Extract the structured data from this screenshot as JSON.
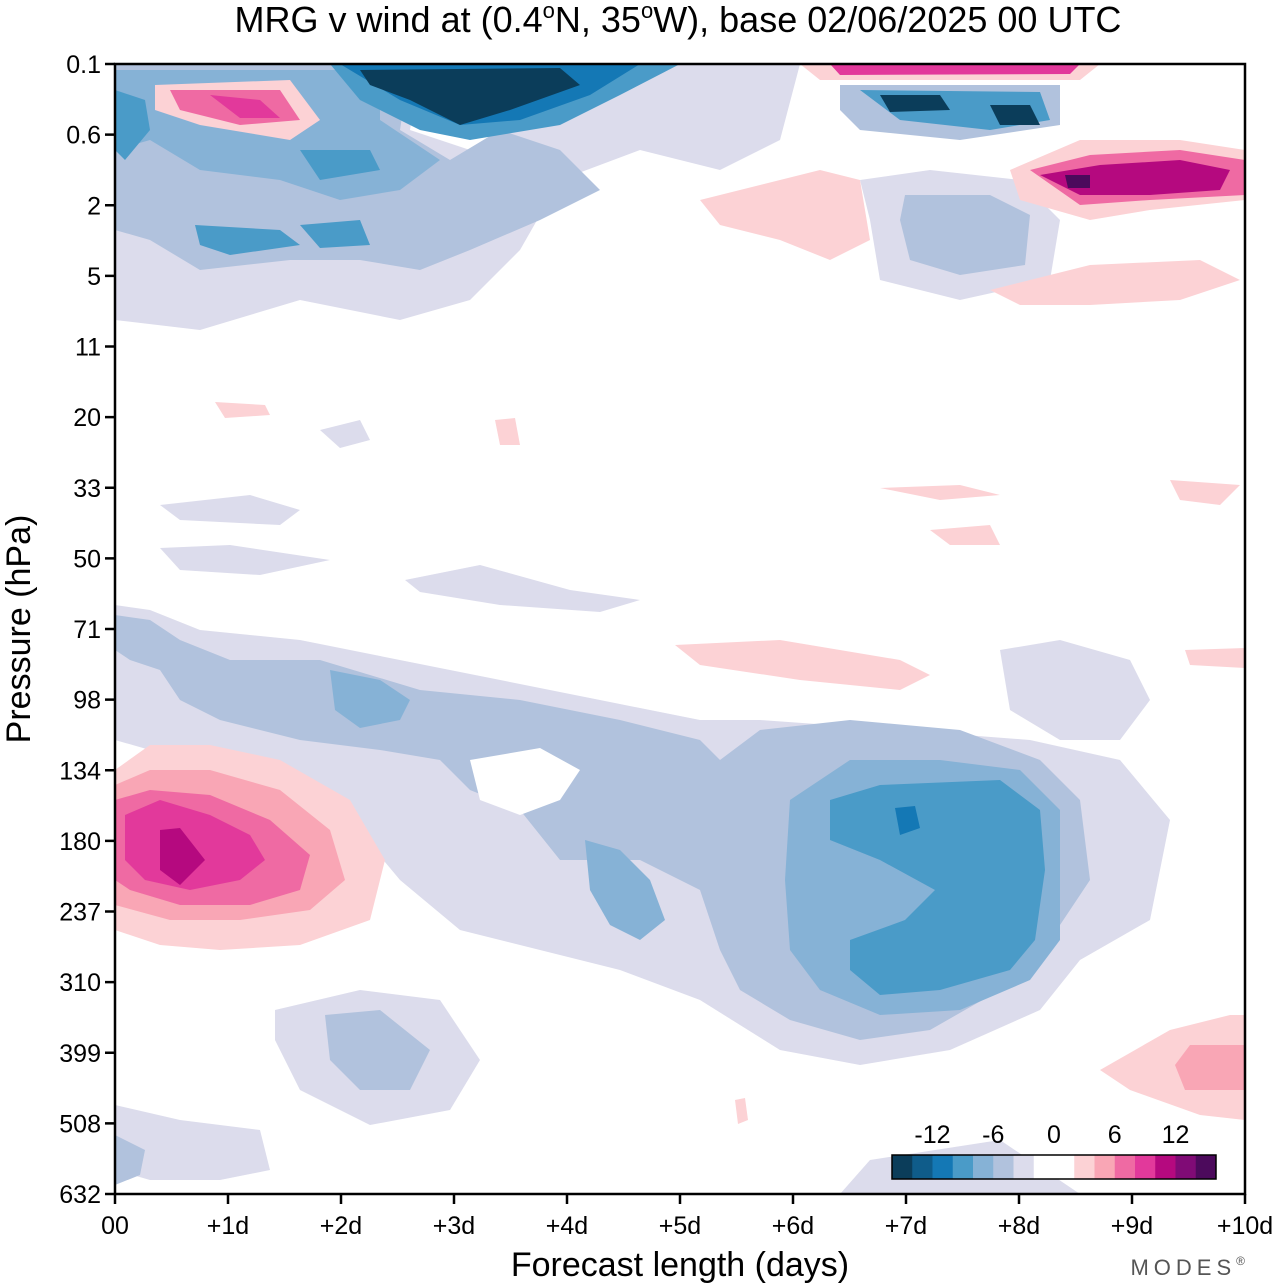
{
  "chart_data": {
    "type": "contour",
    "title": "MRG v wind at (0.4°N, 35°W),  base 02/06/2025  00 UTC",
    "title_parts": {
      "pre": "MRG v wind at (0.4",
      "deg1": "o",
      "mid": "N, 35",
      "deg2": "o",
      "post": "W),  base 02/06/2025  00 UTC"
    },
    "xlabel": "Forecast length (days)",
    "ylabel": "Pressure (hPa)",
    "x_ticks": [
      "00",
      "+1d",
      "+2d",
      "+3d",
      "+4d",
      "+5d",
      "+6d",
      "+7d",
      "+8d",
      "+9d",
      "+10d"
    ],
    "y_ticks": [
      "0.1",
      "0.6",
      "2",
      "5",
      "11",
      "20",
      "33",
      "50",
      "71",
      "98",
      "134",
      "180",
      "237",
      "310",
      "399",
      "508",
      "632"
    ],
    "xlim": [
      0,
      10
    ],
    "colorbar": {
      "tick_labels": [
        "-12",
        "-6",
        "0",
        "6",
        "12"
      ],
      "colors": [
        "#0b3d5a",
        "#0f5c8a",
        "#1478b5",
        "#4a9bc8",
        "#86b2d6",
        "#b1c2dd",
        "#dcdcec",
        "#ffffff",
        "#ffffff",
        "#fcd2d5",
        "#f9a6b5",
        "#ef6aa3",
        "#e2399b",
        "#b5097f",
        "#800b76",
        "#4c0a5c"
      ]
    },
    "levels_approx": [
      "-14",
      "-12",
      "-10",
      "-8",
      "-6",
      "-4",
      "-2",
      "0",
      "2",
      "4",
      "6",
      "8",
      "10",
      "12",
      "14"
    ],
    "features": [
      {
        "x": 0.6,
        "y": "180",
        "value": 12
      },
      {
        "x": 7.0,
        "y": "180",
        "value": -10
      },
      {
        "x": 8.1,
        "y": "237",
        "value": -8
      },
      {
        "x": 4.5,
        "y": "237",
        "value": -6
      },
      {
        "x": 2.2,
        "y": "98",
        "value": -6
      },
      {
        "x": 3.2,
        "y": "0.3",
        "value": -14
      },
      {
        "x": 1.0,
        "y": "0.4",
        "value": 12
      },
      {
        "x": 8.5,
        "y": "1",
        "value": 14
      },
      {
        "x": 9.6,
        "y": "399",
        "value": 4
      }
    ]
  },
  "branding": {
    "text": "MODES",
    "mark": "®"
  }
}
